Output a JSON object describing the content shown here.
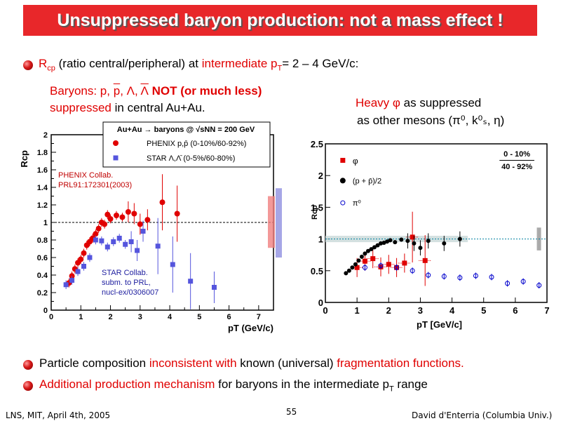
{
  "slide": {
    "title": "Unsuppressed baryon production: not a mass effect !",
    "bullet1": {
      "pre": "R",
      "sub": "cp",
      "mid": " (ratio central/peripheral) at ",
      "red": "intermediate p",
      "sub2": "T",
      "post": "= 2 – 4 GeV/c:"
    },
    "baryons": {
      "lbl": "Baryons:  p, ",
      "pbar": "p",
      "mid": ", Λ, ",
      "lbar": "Λ",
      "not": " NOT (or much less)",
      "supp": "suppressed",
      "rest": " in central Au+Au."
    },
    "heavy": {
      "red": "Heavy φ",
      "rest": " as suppressed",
      "line2": "as other mesons (π⁰, k⁰ₛ, η)"
    },
    "bullet2": {
      "a": "Particle composition ",
      "b": "inconsistent with",
      "c": " known (universal) ",
      "d": "fragmentation functions."
    },
    "bullet3": {
      "a": "Additional production mechanism",
      "b": " for baryons in the intermediate p",
      "sub": "T",
      "c": " range"
    },
    "footer": {
      "left": "LNS, MIT, April 4th, 2005",
      "page": "55",
      "right": "David d'Enterria (Columbia Univ.)"
    }
  },
  "chart_data": [
    {
      "type": "scatter",
      "title": "Au+Au → baryons @ √sNN = 200 GeV",
      "xlabel": "pT (GeV/c)",
      "ylabel": "Rcp",
      "xlim": [
        0,
        7.5
      ],
      "ylim": [
        0,
        2
      ],
      "xticks": [
        "0",
        "1",
        "2",
        "3",
        "4",
        "5",
        "6",
        "7"
      ],
      "yticks": [
        "0",
        "0.2",
        "0.4",
        "0.6",
        "0.8",
        "1",
        "1.2",
        "1.4",
        "1.6",
        "1.8",
        "2"
      ],
      "annotations": [
        "PHENIX Collab.",
        "PRL91:172301(2003)",
        "STAR Collab.",
        "subm. to PRL,",
        "nucl-ex/0306007"
      ],
      "legend_position": "top",
      "series": [
        {
          "name": "PHENIX p,p̄ (0-10%/60-92%)",
          "color": "#e00000",
          "marker": "circle",
          "x": [
            0.6,
            0.7,
            0.8,
            0.9,
            1.0,
            1.1,
            1.2,
            1.3,
            1.4,
            1.5,
            1.6,
            1.7,
            1.8,
            1.9,
            2.0,
            2.2,
            2.4,
            2.6,
            2.8,
            3.0,
            3.25,
            3.75,
            4.25
          ],
          "y": [
            0.31,
            0.39,
            0.47,
            0.54,
            0.58,
            0.65,
            0.74,
            0.78,
            0.82,
            0.87,
            0.93,
            1.0,
            0.98,
            1.09,
            1.04,
            1.08,
            1.06,
            1.12,
            1.1,
            0.98,
            1.03,
            1.23,
            1.1
          ]
        },
        {
          "name": "STAR Λ,Λ̄ (0-5%/60-80%)",
          "color": "#5555dd",
          "marker": "square",
          "x": [
            0.5,
            0.7,
            0.9,
            1.1,
            1.3,
            1.5,
            1.7,
            1.9,
            2.1,
            2.3,
            2.5,
            2.7,
            2.9,
            3.1,
            3.6,
            4.1,
            4.7,
            5.5
          ],
          "y": [
            0.29,
            0.34,
            0.44,
            0.5,
            0.6,
            0.8,
            0.79,
            0.72,
            0.78,
            0.82,
            0.75,
            0.78,
            0.68,
            0.9,
            0.73,
            0.52,
            0.33,
            0.26
          ]
        }
      ],
      "reference_line": 1
    },
    {
      "type": "scatter",
      "xlabel": "pT [GeV/c]",
      "ylabel": "Rcp",
      "xlim": [
        0,
        7
      ],
      "ylim": [
        0,
        2.5
      ],
      "xticks": [
        "0",
        "1",
        "2",
        "3",
        "4",
        "5",
        "6",
        "7"
      ],
      "yticks": [
        "0",
        "0.5",
        "1",
        "1.5",
        "2",
        "2.5"
      ],
      "centrality": {
        "num": "0 - 10%",
        "den": "40 - 92%"
      },
      "legend_position": "top-left",
      "series": [
        {
          "name": "φ",
          "color": "#e00000",
          "marker": "square",
          "x": [
            1.0,
            1.25,
            1.5,
            1.75,
            2.0,
            2.25,
            2.5,
            2.75,
            3.15
          ],
          "y": [
            0.55,
            0.65,
            0.69,
            0.56,
            0.6,
            0.55,
            0.62,
            1.03,
            0.66
          ]
        },
        {
          "name": "(p + p̄)/2",
          "color": "#000000",
          "marker": "circle",
          "x": [
            0.65,
            0.75,
            0.85,
            0.95,
            1.05,
            1.15,
            1.25,
            1.35,
            1.45,
            1.55,
            1.65,
            1.75,
            1.85,
            1.95,
            2.05,
            2.2,
            2.4,
            2.6,
            2.8,
            3.0,
            3.25,
            3.75,
            4.25
          ],
          "y": [
            0.46,
            0.5,
            0.55,
            0.6,
            0.66,
            0.72,
            0.77,
            0.81,
            0.84,
            0.87,
            0.9,
            0.93,
            0.94,
            0.96,
            0.98,
            0.95,
            0.99,
            0.97,
            0.93,
            0.86,
            0.97,
            0.93,
            1.0
          ]
        },
        {
          "name": "π⁰",
          "color": "#0000cc",
          "marker": "open-circle",
          "x": [
            1.25,
            1.75,
            2.25,
            2.75,
            3.25,
            3.75,
            4.25,
            4.75,
            5.25,
            5.75,
            6.25,
            6.75
          ],
          "y": [
            0.55,
            0.58,
            0.55,
            0.5,
            0.43,
            0.41,
            0.39,
            0.42,
            0.4,
            0.3,
            0.33,
            0.27
          ]
        }
      ],
      "reference_line": 1
    }
  ]
}
